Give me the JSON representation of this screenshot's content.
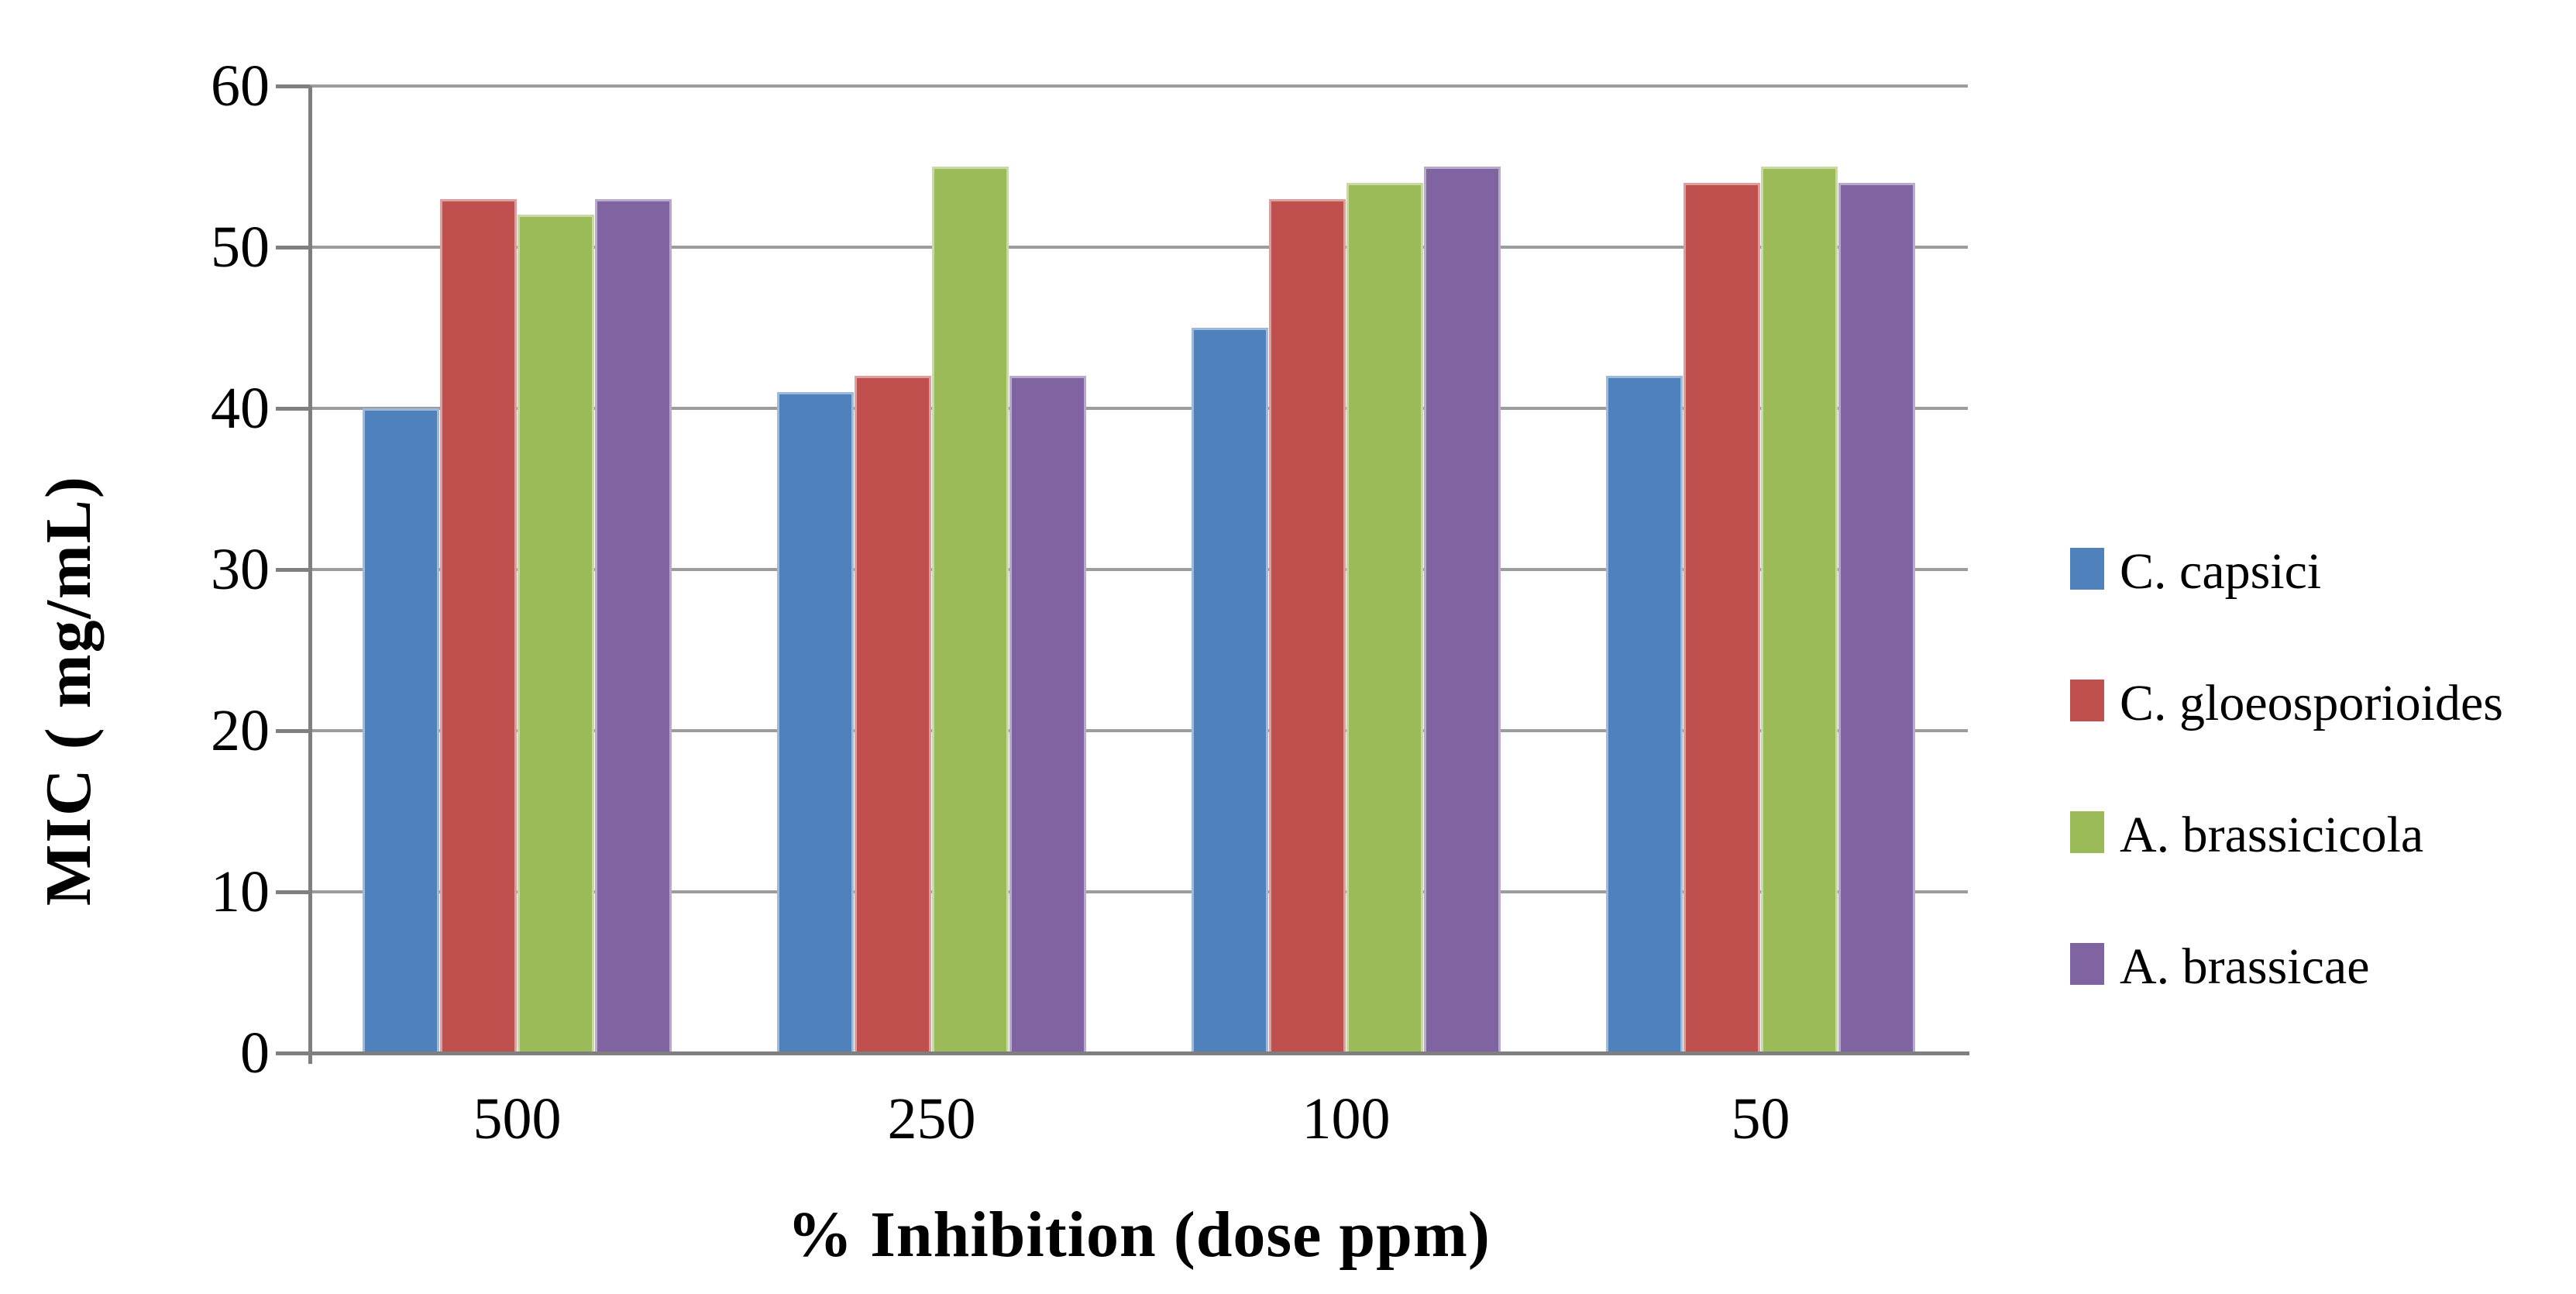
{
  "chart_data": {
    "type": "bar",
    "title": "",
    "xlabel": "% Inhibition (dose ppm)",
    "ylabel": "MIC ( mg/mL)",
    "categories": [
      "500",
      "250",
      "100",
      "50"
    ],
    "series": [
      {
        "name": "C. capsici",
        "color": "#4F81BD",
        "values": [
          40,
          41,
          45,
          42
        ]
      },
      {
        "name": "C. gloeosporioides",
        "color": "#C0504D",
        "values": [
          53,
          42,
          53,
          54
        ]
      },
      {
        "name": "A. brassicicola",
        "color": "#9BBB59",
        "values": [
          52,
          55,
          54,
          55
        ]
      },
      {
        "name": "A. brassicae",
        "color": "#8064A2",
        "values": [
          53,
          42,
          55,
          54
        ]
      }
    ],
    "ylim": [
      0,
      60
    ],
    "ytick_step": 10,
    "yticks": [
      "0",
      "10",
      "20",
      "30",
      "40",
      "50",
      "60"
    ],
    "grid": "horizontal",
    "legend_position": "right",
    "colors": {
      "gridline": "#9C9C9C",
      "axis": "#7F7F7F",
      "background": "#FFFFFF"
    }
  }
}
